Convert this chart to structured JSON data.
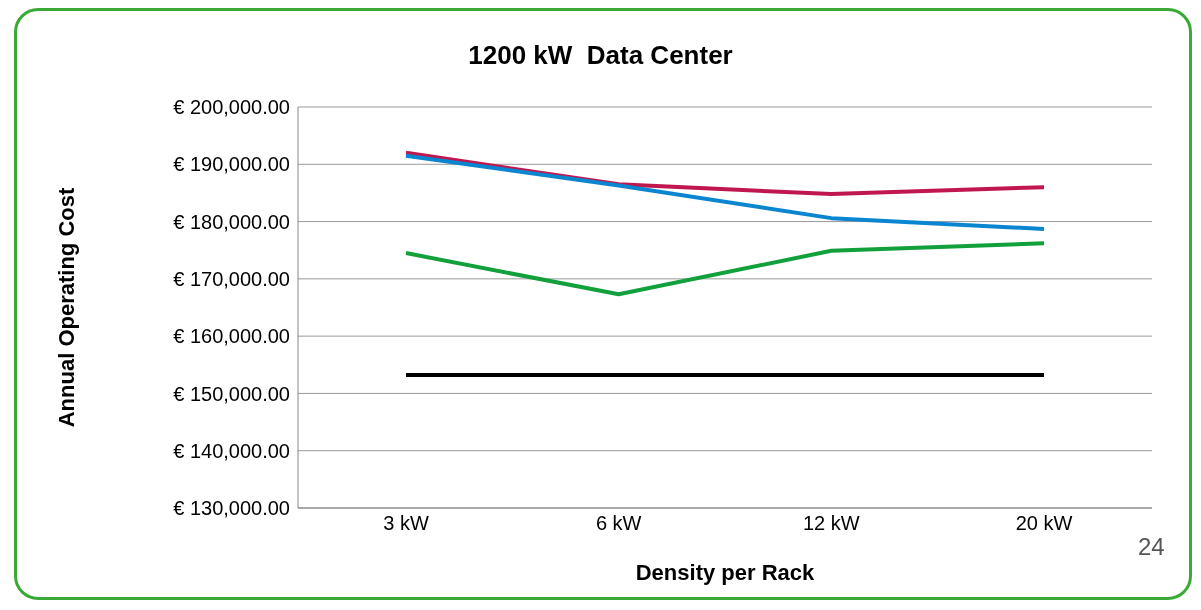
{
  "chart_data": {
    "type": "line",
    "title": "1200 kW  Data Center",
    "xlabel": "Density per Rack",
    "ylabel": "Annual Operating Cost",
    "categories": [
      "3 kW",
      "6 kW",
      "12 kW",
      "20 kW"
    ],
    "series": [
      {
        "color": "#c0174f",
        "values": [
          192000,
          186500,
          184800,
          186000
        ]
      },
      {
        "color": "#0a86d0",
        "values": [
          191500,
          186300,
          180600,
          178700
        ]
      },
      {
        "color": "#12a03c",
        "values": [
          174500,
          167300,
          174900,
          176200
        ]
      },
      {
        "color": "#000000",
        "values": [
          153200,
          153200,
          153200,
          153200
        ]
      }
    ],
    "ylim": [
      130000,
      200000
    ],
    "yticks": [
      {
        "value": 130000,
        "label": "€ 130,000.00"
      },
      {
        "value": 140000,
        "label": "€ 140,000.00"
      },
      {
        "value": 150000,
        "label": "€ 150,000.00"
      },
      {
        "value": 160000,
        "label": "€ 160,000.00"
      },
      {
        "value": 170000,
        "label": "€ 170,000.00"
      },
      {
        "value": 180000,
        "label": "€ 180,000.00"
      },
      {
        "value": 190000,
        "label": "€ 190,000.00"
      },
      {
        "value": 200000,
        "label": "€ 200,000.00"
      }
    ],
    "grid": "y",
    "legend": false,
    "marker": "none",
    "line_style": "solid",
    "annotations": [
      "24"
    ]
  }
}
